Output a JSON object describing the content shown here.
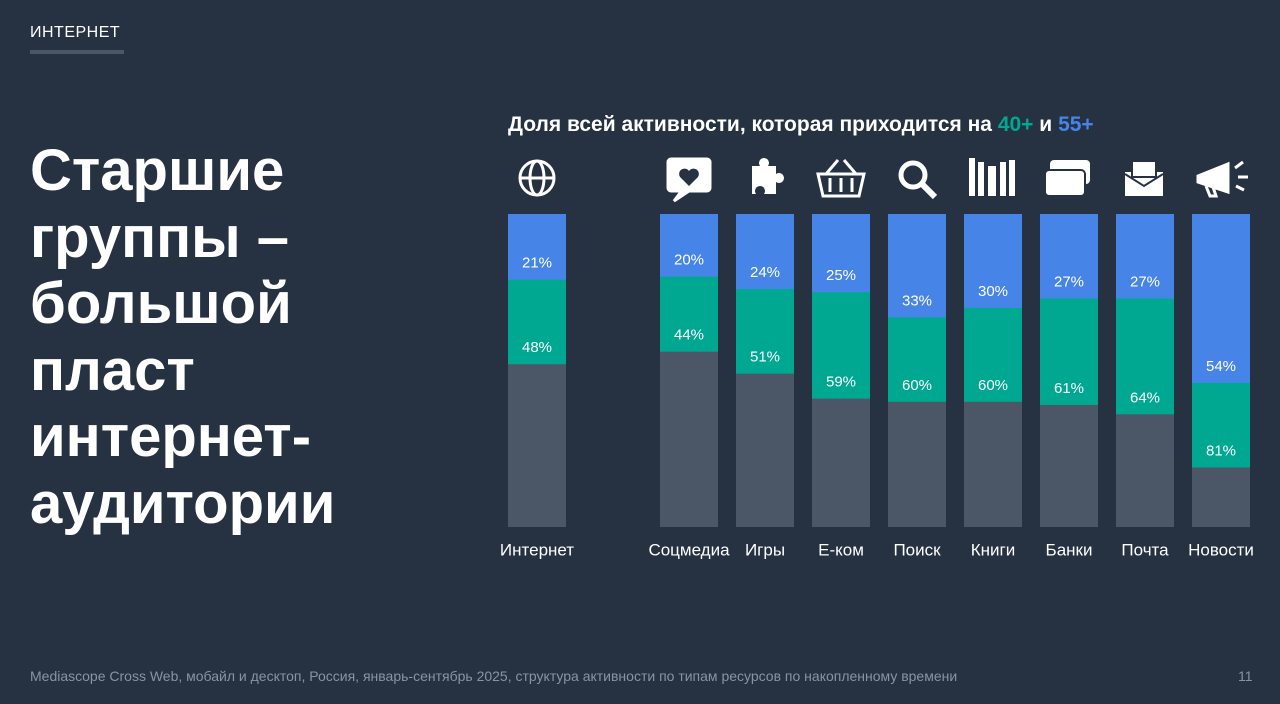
{
  "header": {
    "section": "ИНТЕРНЕТ"
  },
  "heading": {
    "lines": [
      "Старшие",
      "группы –",
      "большой",
      "пласт",
      "интернет-",
      "аудитории"
    ]
  },
  "chart_data": {
    "type": "bar",
    "title_prefix": "Доля всей активности, которая приходится на",
    "title_join": "и",
    "categories": [
      "Интернет",
      "Соцмедиа",
      "Игры",
      "Е-ком",
      "Поиск",
      "Книги",
      "Банки",
      "Почта",
      "Новости"
    ],
    "ylim": [
      0,
      100
    ],
    "track_color": "#4b5667",
    "series": [
      {
        "name": "40+",
        "color": "#00a891",
        "values": [
          48,
          44,
          51,
          59,
          60,
          60,
          61,
          64,
          81
        ],
        "value_labels": [
          "48%",
          "44%",
          "51%",
          "59%",
          "60%",
          "60%",
          "61%",
          "64%",
          "81%"
        ]
      },
      {
        "name": "55+",
        "color": "#4684e8",
        "values": [
          21,
          20,
          24,
          25,
          33,
          30,
          27,
          27,
          54
        ],
        "value_labels": [
          "21%",
          "20%",
          "24%",
          "25%",
          "33%",
          "30%",
          "27%",
          "27%",
          "54%"
        ]
      }
    ]
  },
  "footer": {
    "source": "Mediascope Cross Web, мобайл и десктоп, Россия, январь-сентябрь 2025, структура активности по типам ресурсов по накопленному времени",
    "page": "11"
  }
}
